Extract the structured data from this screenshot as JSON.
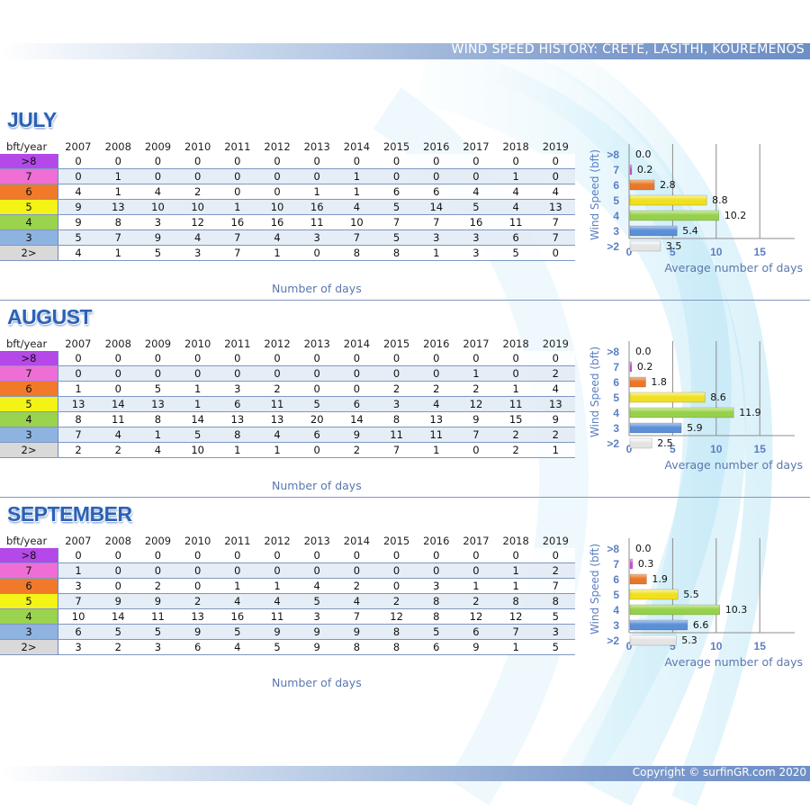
{
  "header": {
    "title": "WIND SPEED HISTORY: CRETE, LASITHI, KOUREMENOS"
  },
  "footer": {
    "copyright": "Copyright © surfinGR.com 2020"
  },
  "colors": {
    "band_gt8": "#b548e8",
    "band_7": "#ef6ed6",
    "band_6": "#f07a2a",
    "band_5": "#f3f316",
    "band_4": "#9ad34e",
    "band_3": "#8fb3e0",
    "band_2": "#d9d9d9",
    "accent": "#2a62b6"
  },
  "table_labels": {
    "corner": "bft/year",
    "x_axis": "Number of days"
  },
  "years": [
    "2007",
    "2008",
    "2009",
    "2010",
    "2011",
    "2012",
    "2013",
    "2014",
    "2015",
    "2016",
    "2017",
    "2018",
    "2019"
  ],
  "rows": [
    ">8",
    "7",
    "6",
    "5",
    "4",
    "3",
    "2>"
  ],
  "months": [
    {
      "name": "JULY",
      "data": [
        [
          0,
          0,
          0,
          0,
          0,
          0,
          0,
          0,
          0,
          0,
          0,
          0,
          0
        ],
        [
          0,
          1,
          0,
          0,
          0,
          0,
          0,
          1,
          0,
          0,
          0,
          1,
          0
        ],
        [
          4,
          1,
          4,
          2,
          0,
          0,
          1,
          1,
          6,
          6,
          4,
          4,
          4
        ],
        [
          9,
          13,
          10,
          10,
          1,
          10,
          16,
          4,
          5,
          14,
          5,
          4,
          13
        ],
        [
          9,
          8,
          3,
          12,
          16,
          16,
          11,
          10,
          7,
          7,
          16,
          11,
          7
        ],
        [
          5,
          7,
          9,
          4,
          7,
          4,
          3,
          7,
          5,
          3,
          3,
          6,
          7
        ],
        [
          4,
          1,
          5,
          3,
          7,
          1,
          0,
          8,
          8,
          1,
          3,
          5,
          0
        ]
      ]
    },
    {
      "name": "AUGUST",
      "data": [
        [
          0,
          0,
          0,
          0,
          0,
          0,
          0,
          0,
          0,
          0,
          0,
          0,
          0
        ],
        [
          0,
          0,
          0,
          0,
          0,
          0,
          0,
          0,
          0,
          0,
          1,
          0,
          2
        ],
        [
          1,
          0,
          5,
          1,
          3,
          2,
          0,
          0,
          2,
          2,
          2,
          1,
          4
        ],
        [
          13,
          14,
          13,
          1,
          6,
          11,
          5,
          6,
          3,
          4,
          12,
          11,
          13
        ],
        [
          8,
          11,
          8,
          14,
          13,
          13,
          20,
          14,
          8,
          13,
          9,
          15,
          9
        ],
        [
          7,
          4,
          1,
          5,
          8,
          4,
          6,
          9,
          11,
          11,
          7,
          2,
          2
        ],
        [
          2,
          2,
          4,
          10,
          1,
          1,
          0,
          2,
          7,
          1,
          0,
          2,
          1
        ]
      ]
    },
    {
      "name": "SEPTEMBER",
      "data": [
        [
          0,
          0,
          0,
          0,
          0,
          0,
          0,
          0,
          0,
          0,
          0,
          0,
          0
        ],
        [
          1,
          0,
          0,
          0,
          0,
          0,
          0,
          0,
          0,
          0,
          0,
          1,
          2
        ],
        [
          3,
          0,
          2,
          0,
          1,
          1,
          4,
          2,
          0,
          3,
          1,
          1,
          7
        ],
        [
          7,
          9,
          9,
          2,
          4,
          4,
          5,
          4,
          2,
          8,
          2,
          8,
          8
        ],
        [
          10,
          14,
          11,
          13,
          16,
          11,
          3,
          7,
          12,
          8,
          12,
          12,
          5
        ],
        [
          6,
          5,
          5,
          9,
          5,
          9,
          9,
          9,
          8,
          5,
          6,
          7,
          3
        ],
        [
          3,
          2,
          3,
          6,
          4,
          5,
          9,
          8,
          8,
          6,
          9,
          1,
          5
        ]
      ]
    }
  ],
  "chart_data": [
    {
      "type": "bar",
      "orientation": "horizontal",
      "title": "",
      "ylabel": "Wind Speed (bft)",
      "xlabel": "Average number of days",
      "categories": [
        ">8",
        "7",
        "6",
        "5",
        "4",
        "3",
        ">2"
      ],
      "values": [
        0.0,
        0.2,
        2.8,
        8.8,
        10.2,
        5.4,
        3.5
      ],
      "value_labels": [
        "0.0",
        "0.2",
        "2.8",
        "8.8",
        "10.2",
        "5.4",
        "3.5"
      ],
      "xlim": [
        0,
        18
      ],
      "xticks": [
        0,
        5,
        10,
        15
      ],
      "grid": true
    },
    {
      "type": "bar",
      "orientation": "horizontal",
      "title": "",
      "ylabel": "Wind Speed (bft)",
      "xlabel": "Average number of days",
      "categories": [
        ">8",
        "7",
        "6",
        "5",
        "4",
        "3",
        ">2"
      ],
      "values": [
        0.0,
        0.2,
        1.8,
        8.6,
        11.9,
        5.9,
        2.5
      ],
      "value_labels": [
        "0.0",
        "0.2",
        "1.8",
        "8.6",
        "11.9",
        "5.9",
        "2.5"
      ],
      "xlim": [
        0,
        18
      ],
      "xticks": [
        0,
        5,
        10,
        15
      ],
      "grid": true
    },
    {
      "type": "bar",
      "orientation": "horizontal",
      "title": "",
      "ylabel": "Wind Speed (bft)",
      "xlabel": "Average number of days",
      "categories": [
        ">8",
        "7",
        "6",
        "5",
        "4",
        "3",
        ">2"
      ],
      "values": [
        0.0,
        0.3,
        1.9,
        5.5,
        10.3,
        6.6,
        5.3
      ],
      "value_labels": [
        "0.0",
        "0.3",
        "1.9",
        "5.5",
        "10.3",
        "6.6",
        "5.3"
      ],
      "xlim": [
        0,
        18
      ],
      "xticks": [
        0,
        5,
        10,
        15
      ],
      "grid": true
    }
  ]
}
